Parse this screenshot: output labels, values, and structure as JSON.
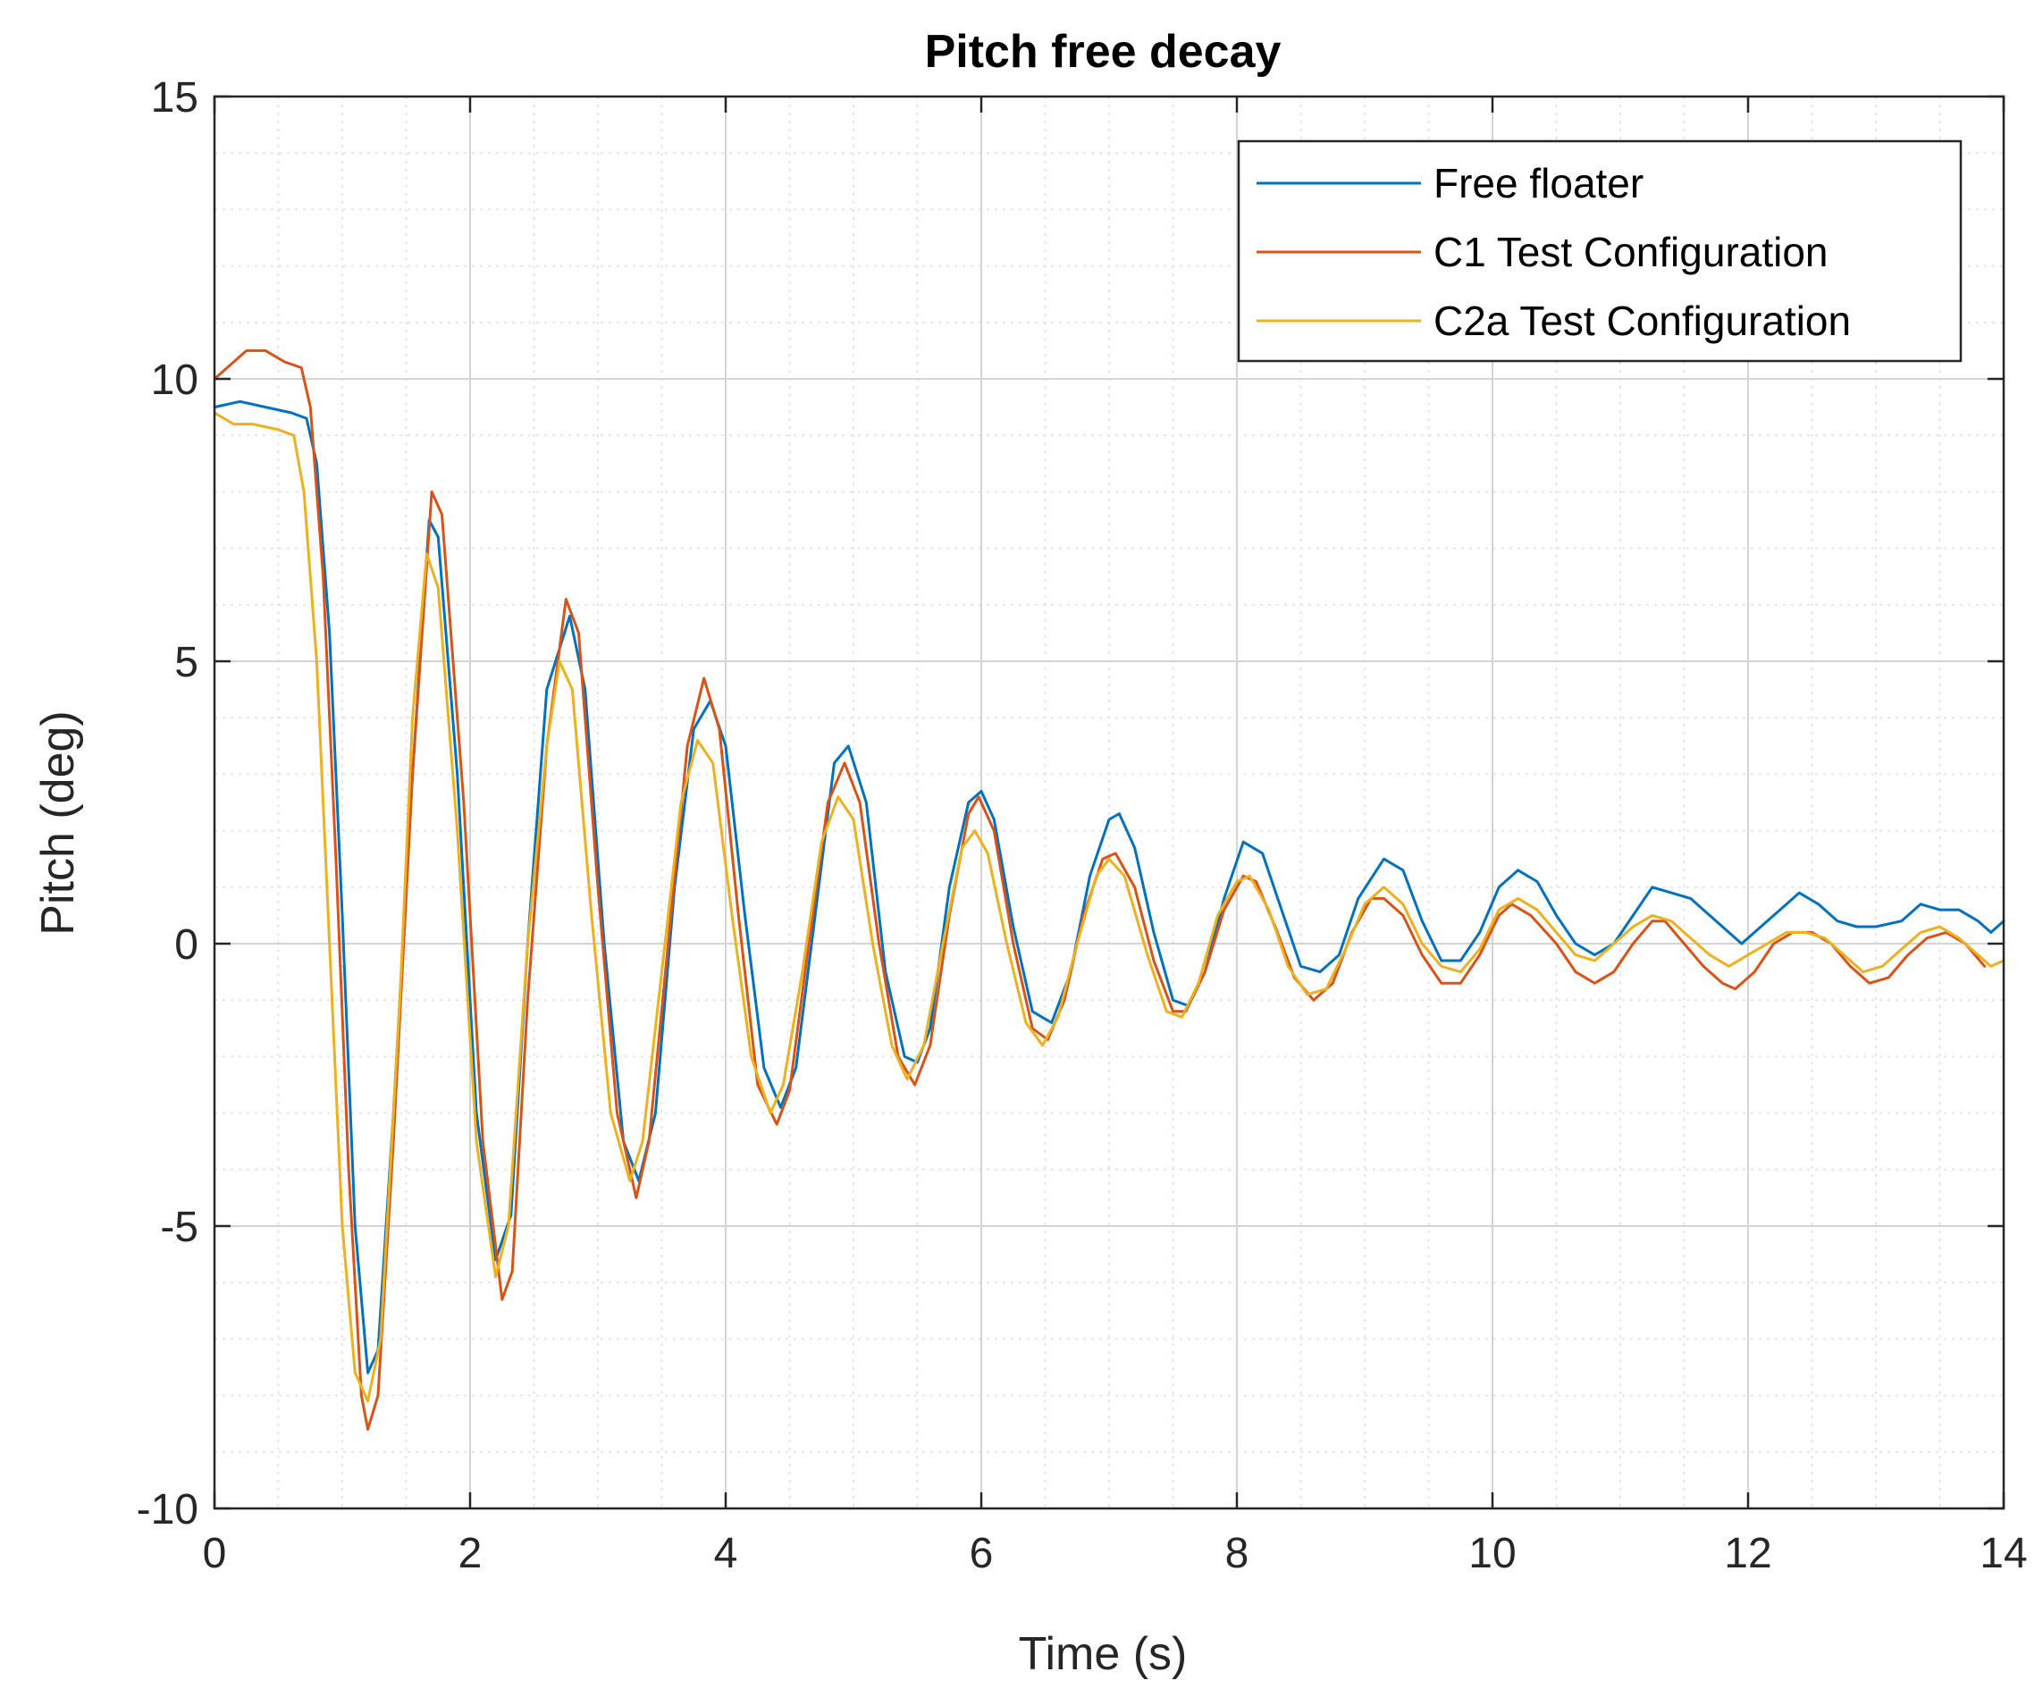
{
  "chart_data": {
    "type": "line",
    "title": "Pitch free decay",
    "xlabel": "Time (s)",
    "ylabel": "Pitch (deg)",
    "xlim": [
      0,
      14
    ],
    "ylim": [
      -10,
      15
    ],
    "xticks": [
      0,
      2,
      4,
      6,
      8,
      10,
      12,
      14
    ],
    "yticks": [
      -10,
      -5,
      0,
      5,
      10,
      15
    ],
    "xtick_labels": [
      "0",
      "2",
      "4",
      "6",
      "8",
      "10",
      "12",
      "14"
    ],
    "ytick_labels": [
      "-10",
      "-5",
      "0",
      "5",
      "10",
      "15"
    ],
    "grid": true,
    "minor_grid": true,
    "legend_position": "top-right",
    "series": [
      {
        "name": "Free floater",
        "color": "#0072BD",
        "points": [
          [
            0,
            9.5
          ],
          [
            0.2,
            9.6
          ],
          [
            0.4,
            9.5
          ],
          [
            0.6,
            9.4
          ],
          [
            0.72,
            9.3
          ],
          [
            0.8,
            8.5
          ],
          [
            0.9,
            5.5
          ],
          [
            1.0,
            0.5
          ],
          [
            1.1,
            -5
          ],
          [
            1.2,
            -7.6
          ],
          [
            1.28,
            -7.2
          ],
          [
            1.4,
            -3
          ],
          [
            1.55,
            3
          ],
          [
            1.68,
            7.5
          ],
          [
            1.75,
            7.2
          ],
          [
            1.9,
            3
          ],
          [
            2.05,
            -3
          ],
          [
            2.2,
            -5.6
          ],
          [
            2.32,
            -4.8
          ],
          [
            2.45,
            0
          ],
          [
            2.6,
            4.5
          ],
          [
            2.78,
            5.8
          ],
          [
            2.9,
            4.5
          ],
          [
            3.05,
            0
          ],
          [
            3.2,
            -3.5
          ],
          [
            3.32,
            -4.2
          ],
          [
            3.45,
            -3
          ],
          [
            3.6,
            1
          ],
          [
            3.75,
            3.8
          ],
          [
            3.88,
            4.3
          ],
          [
            4.0,
            3.5
          ],
          [
            4.15,
            0.5
          ],
          [
            4.3,
            -2.2
          ],
          [
            4.43,
            -2.9
          ],
          [
            4.55,
            -2.2
          ],
          [
            4.7,
            0.5
          ],
          [
            4.85,
            3.2
          ],
          [
            4.96,
            3.5
          ],
          [
            5.1,
            2.5
          ],
          [
            5.25,
            -0.5
          ],
          [
            5.4,
            -2
          ],
          [
            5.5,
            -2.1
          ],
          [
            5.6,
            -1.5
          ],
          [
            5.75,
            1
          ],
          [
            5.9,
            2.5
          ],
          [
            6.0,
            2.7
          ],
          [
            6.1,
            2.2
          ],
          [
            6.25,
            0.3
          ],
          [
            6.4,
            -1.2
          ],
          [
            6.55,
            -1.4
          ],
          [
            6.7,
            -0.5
          ],
          [
            6.85,
            1.2
          ],
          [
            7.0,
            2.2
          ],
          [
            7.08,
            2.3
          ],
          [
            7.2,
            1.7
          ],
          [
            7.35,
            0.2
          ],
          [
            7.5,
            -1
          ],
          [
            7.62,
            -1.1
          ],
          [
            7.75,
            -0.5
          ],
          [
            7.9,
            0.8
          ],
          [
            8.05,
            1.8
          ],
          [
            8.2,
            1.6
          ],
          [
            8.35,
            0.6
          ],
          [
            8.5,
            -0.4
          ],
          [
            8.65,
            -0.5
          ],
          [
            8.8,
            -0.2
          ],
          [
            8.95,
            0.8
          ],
          [
            9.15,
            1.5
          ],
          [
            9.3,
            1.3
          ],
          [
            9.45,
            0.4
          ],
          [
            9.6,
            -0.3
          ],
          [
            9.75,
            -0.3
          ],
          [
            9.9,
            0.2
          ],
          [
            10.05,
            1
          ],
          [
            10.2,
            1.3
          ],
          [
            10.35,
            1.1
          ],
          [
            10.5,
            0.5
          ],
          [
            10.65,
            0
          ],
          [
            10.8,
            -0.2
          ],
          [
            10.95,
            0
          ],
          [
            11.1,
            0.5
          ],
          [
            11.25,
            1
          ],
          [
            11.4,
            0.9
          ],
          [
            11.55,
            0.8
          ],
          [
            11.7,
            0.5
          ],
          [
            11.85,
            0.2
          ],
          [
            11.95,
            0
          ],
          [
            12.1,
            0.3
          ],
          [
            12.25,
            0.6
          ],
          [
            12.4,
            0.9
          ],
          [
            12.55,
            0.7
          ],
          [
            12.7,
            0.4
          ],
          [
            12.85,
            0.3
          ],
          [
            13.0,
            0.3
          ],
          [
            13.2,
            0.4
          ],
          [
            13.35,
            0.7
          ],
          [
            13.5,
            0.6
          ],
          [
            13.65,
            0.6
          ],
          [
            13.8,
            0.4
          ],
          [
            13.9,
            0.2
          ],
          [
            14.0,
            0.4
          ]
        ]
      },
      {
        "name": "C1 Test Configuration",
        "color": "#D95319",
        "points": [
          [
            0,
            10
          ],
          [
            0.1,
            10.2
          ],
          [
            0.25,
            10.5
          ],
          [
            0.4,
            10.5
          ],
          [
            0.55,
            10.3
          ],
          [
            0.68,
            10.2
          ],
          [
            0.75,
            9.5
          ],
          [
            0.85,
            6.5
          ],
          [
            0.95,
            1.5
          ],
          [
            1.05,
            -4
          ],
          [
            1.15,
            -8
          ],
          [
            1.2,
            -8.6
          ],
          [
            1.28,
            -8
          ],
          [
            1.4,
            -3.5
          ],
          [
            1.55,
            3
          ],
          [
            1.7,
            8
          ],
          [
            1.78,
            7.6
          ],
          [
            1.95,
            2.5
          ],
          [
            2.1,
            -3.5
          ],
          [
            2.25,
            -6.3
          ],
          [
            2.33,
            -5.8
          ],
          [
            2.45,
            -1
          ],
          [
            2.6,
            3.5
          ],
          [
            2.75,
            6.1
          ],
          [
            2.85,
            5.5
          ],
          [
            3.0,
            1
          ],
          [
            3.15,
            -3
          ],
          [
            3.3,
            -4.5
          ],
          [
            3.4,
            -3.5
          ],
          [
            3.55,
            0
          ],
          [
            3.7,
            3.5
          ],
          [
            3.83,
            4.7
          ],
          [
            3.95,
            3.8
          ],
          [
            4.1,
            0.5
          ],
          [
            4.25,
            -2.5
          ],
          [
            4.4,
            -3.2
          ],
          [
            4.5,
            -2.6
          ],
          [
            4.65,
            0
          ],
          [
            4.8,
            2.5
          ],
          [
            4.93,
            3.2
          ],
          [
            5.05,
            2.5
          ],
          [
            5.2,
            0
          ],
          [
            5.35,
            -2
          ],
          [
            5.48,
            -2.5
          ],
          [
            5.6,
            -1.8
          ],
          [
            5.75,
            0.5
          ],
          [
            5.9,
            2.3
          ],
          [
            5.98,
            2.6
          ],
          [
            6.1,
            2
          ],
          [
            6.25,
            0
          ],
          [
            6.4,
            -1.5
          ],
          [
            6.52,
            -1.7
          ],
          [
            6.65,
            -1
          ],
          [
            6.8,
            0.5
          ],
          [
            6.95,
            1.5
          ],
          [
            7.05,
            1.6
          ],
          [
            7.2,
            1
          ],
          [
            7.35,
            -0.3
          ],
          [
            7.5,
            -1.2
          ],
          [
            7.6,
            -1.2
          ],
          [
            7.75,
            -0.5
          ],
          [
            7.9,
            0.6
          ],
          [
            8.05,
            1.2
          ],
          [
            8.15,
            1.1
          ],
          [
            8.3,
            0.3
          ],
          [
            8.45,
            -0.6
          ],
          [
            8.6,
            -1
          ],
          [
            8.75,
            -0.7
          ],
          [
            8.9,
            0.2
          ],
          [
            9.05,
            0.8
          ],
          [
            9.15,
            0.8
          ],
          [
            9.3,
            0.5
          ],
          [
            9.45,
            -0.2
          ],
          [
            9.6,
            -0.7
          ],
          [
            9.75,
            -0.7
          ],
          [
            9.9,
            -0.2
          ],
          [
            10.05,
            0.5
          ],
          [
            10.15,
            0.7
          ],
          [
            10.3,
            0.5
          ],
          [
            10.5,
            0
          ],
          [
            10.65,
            -0.5
          ],
          [
            10.8,
            -0.7
          ],
          [
            10.95,
            -0.5
          ],
          [
            11.1,
            0
          ],
          [
            11.25,
            0.4
          ],
          [
            11.35,
            0.4
          ],
          [
            11.5,
            0
          ],
          [
            11.65,
            -0.4
          ],
          [
            11.8,
            -0.7
          ],
          [
            11.9,
            -0.8
          ],
          [
            12.05,
            -0.5
          ],
          [
            12.2,
            0
          ],
          [
            12.35,
            0.2
          ],
          [
            12.5,
            0.2
          ],
          [
            12.65,
            0
          ],
          [
            12.8,
            -0.4
          ],
          [
            12.95,
            -0.7
          ],
          [
            13.1,
            -0.6
          ],
          [
            13.25,
            -0.2
          ],
          [
            13.4,
            0.1
          ],
          [
            13.55,
            0.2
          ],
          [
            13.7,
            0
          ],
          [
            13.85,
            -0.4
          ]
        ]
      },
      {
        "name": "C2a Test Configuration",
        "color": "#EDB120",
        "points": [
          [
            0,
            9.4
          ],
          [
            0.15,
            9.2
          ],
          [
            0.3,
            9.2
          ],
          [
            0.5,
            9.1
          ],
          [
            0.62,
            9
          ],
          [
            0.7,
            8
          ],
          [
            0.8,
            5
          ],
          [
            0.9,
            0
          ],
          [
            1.0,
            -5
          ],
          [
            1.1,
            -7.6
          ],
          [
            1.2,
            -8.1
          ],
          [
            1.3,
            -7
          ],
          [
            1.45,
            -1
          ],
          [
            1.55,
            4
          ],
          [
            1.66,
            6.9
          ],
          [
            1.75,
            6.3
          ],
          [
            1.9,
            2
          ],
          [
            2.05,
            -3.5
          ],
          [
            2.2,
            -5.9
          ],
          [
            2.3,
            -5
          ],
          [
            2.45,
            0
          ],
          [
            2.6,
            3.5
          ],
          [
            2.7,
            5
          ],
          [
            2.8,
            4.5
          ],
          [
            2.95,
            0.5
          ],
          [
            3.1,
            -3
          ],
          [
            3.25,
            -4.2
          ],
          [
            3.35,
            -3.5
          ],
          [
            3.5,
            -0.5
          ],
          [
            3.65,
            2.5
          ],
          [
            3.78,
            3.6
          ],
          [
            3.9,
            3.2
          ],
          [
            4.05,
            0.5
          ],
          [
            4.2,
            -2
          ],
          [
            4.35,
            -3
          ],
          [
            4.45,
            -2.5
          ],
          [
            4.6,
            -0.5
          ],
          [
            4.75,
            1.8
          ],
          [
            4.88,
            2.6
          ],
          [
            5.0,
            2.2
          ],
          [
            5.15,
            0
          ],
          [
            5.3,
            -1.8
          ],
          [
            5.42,
            -2.4
          ],
          [
            5.55,
            -1.8
          ],
          [
            5.7,
            0
          ],
          [
            5.85,
            1.7
          ],
          [
            5.95,
            2
          ],
          [
            6.05,
            1.6
          ],
          [
            6.2,
            0
          ],
          [
            6.35,
            -1.4
          ],
          [
            6.48,
            -1.8
          ],
          [
            6.6,
            -1.3
          ],
          [
            6.75,
            0
          ],
          [
            6.9,
            1.2
          ],
          [
            7.0,
            1.5
          ],
          [
            7.12,
            1.2
          ],
          [
            7.3,
            -0.2
          ],
          [
            7.45,
            -1.2
          ],
          [
            7.57,
            -1.3
          ],
          [
            7.7,
            -0.7
          ],
          [
            7.85,
            0.5
          ],
          [
            8.0,
            1.1
          ],
          [
            8.1,
            1.2
          ],
          [
            8.25,
            0.6
          ],
          [
            8.4,
            -0.4
          ],
          [
            8.55,
            -0.9
          ],
          [
            8.7,
            -0.8
          ],
          [
            8.85,
            -0.1
          ],
          [
            9.0,
            0.7
          ],
          [
            9.15,
            1
          ],
          [
            9.3,
            0.7
          ],
          [
            9.45,
            0
          ],
          [
            9.6,
            -0.4
          ],
          [
            9.75,
            -0.5
          ],
          [
            9.9,
            -0.1
          ],
          [
            10.05,
            0.6
          ],
          [
            10.2,
            0.8
          ],
          [
            10.35,
            0.6
          ],
          [
            10.5,
            0.2
          ],
          [
            10.65,
            -0.2
          ],
          [
            10.8,
            -0.3
          ],
          [
            10.95,
            0
          ],
          [
            11.1,
            0.3
          ],
          [
            11.25,
            0.5
          ],
          [
            11.4,
            0.4
          ],
          [
            11.55,
            0.1
          ],
          [
            11.7,
            -0.2
          ],
          [
            11.85,
            -0.4
          ],
          [
            12.0,
            -0.2
          ],
          [
            12.15,
            0
          ],
          [
            12.3,
            0.2
          ],
          [
            12.45,
            0.2
          ],
          [
            12.6,
            0.1
          ],
          [
            12.75,
            -0.2
          ],
          [
            12.9,
            -0.5
          ],
          [
            13.05,
            -0.4
          ],
          [
            13.2,
            -0.1
          ],
          [
            13.35,
            0.2
          ],
          [
            13.5,
            0.3
          ],
          [
            13.65,
            0.1
          ],
          [
            13.8,
            -0.2
          ],
          [
            13.9,
            -0.4
          ],
          [
            14.0,
            -0.3
          ]
        ]
      }
    ]
  }
}
